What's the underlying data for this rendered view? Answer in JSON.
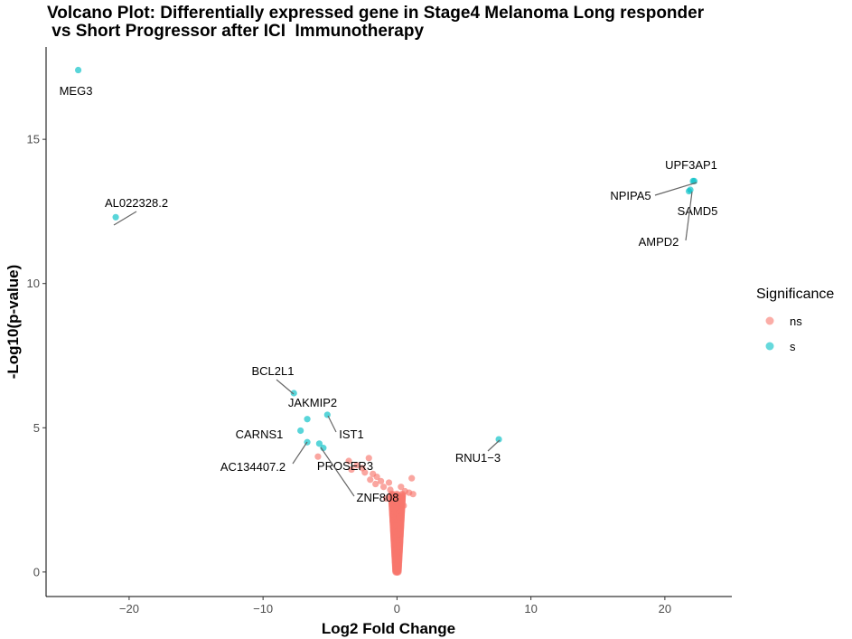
{
  "chart_data": {
    "type": "scatter",
    "title_line1": "Volcano Plot: Differentially expressed gene in Stage4 Melanoma Long responder",
    "title_line2": " vs Short Progressor after ICI  Immunotherapy",
    "xlabel": "Log2 Fold Change",
    "ylabel": "-Log10(p-value)",
    "xlim": [
      -26.2,
      25
    ],
    "ylim": [
      -0.85,
      18.2
    ],
    "x_ticks": [
      {
        "value": -20,
        "label": "−20"
      },
      {
        "value": -10,
        "label": "−10"
      },
      {
        "value": 0,
        "label": "0"
      },
      {
        "value": 10,
        "label": "10"
      },
      {
        "value": 20,
        "label": "20"
      }
    ],
    "y_ticks": [
      {
        "value": 0,
        "label": "0"
      },
      {
        "value": 5,
        "label": "5"
      },
      {
        "value": 10,
        "label": "10"
      },
      {
        "value": 15,
        "label": "15"
      }
    ],
    "legend": {
      "title": "Significance",
      "position": "right",
      "entries": [
        {
          "key": "ns",
          "label": "ns",
          "color": "#F8766D"
        },
        {
          "key": "s",
          "label": "s",
          "color": "#00BFC4"
        }
      ]
    },
    "series": [
      {
        "name": "s",
        "color": "#00BFC4",
        "points": [
          {
            "gene": "MEG3",
            "x": -23.8,
            "y": 17.4
          },
          {
            "gene": "AL022328.2",
            "x": -21.0,
            "y": 12.3
          },
          {
            "gene": "UPF3AP1",
            "x": 22.2,
            "y": 13.55
          },
          {
            "gene": "NPIPA5",
            "x": 22.1,
            "y": 13.55
          },
          {
            "gene": "SAMD5",
            "x": 21.9,
            "y": 13.25
          },
          {
            "gene": "AMPD2",
            "x": 21.8,
            "y": 13.2
          },
          {
            "gene": "BCL2L1",
            "x": -7.7,
            "y": 6.2
          },
          {
            "gene": "JAKMIP2",
            "x": -6.7,
            "y": 5.3
          },
          {
            "gene": "IST1",
            "x": -5.2,
            "y": 5.45
          },
          {
            "gene": "CARNS1",
            "x": -7.2,
            "y": 4.9
          },
          {
            "gene": "AC134407.2",
            "x": -6.7,
            "y": 4.5
          },
          {
            "gene": "PROSER3",
            "x": -5.8,
            "y": 4.45
          },
          {
            "gene": "ZNF808",
            "x": -5.5,
            "y": 4.3
          },
          {
            "gene": "RNU1-3",
            "x": 7.6,
            "y": 4.6
          }
        ]
      },
      {
        "name": "ns",
        "color": "#F8766D",
        "points": [
          {
            "x": -5.9,
            "y": 4.0
          },
          {
            "x": -2.1,
            "y": 3.95
          },
          {
            "x": -3.6,
            "y": 3.85
          },
          {
            "x": -3.0,
            "y": 3.7
          },
          {
            "x": -2.6,
            "y": 3.6
          },
          {
            "x": -3.4,
            "y": 3.55
          },
          {
            "x": -2.4,
            "y": 3.45
          },
          {
            "x": -1.8,
            "y": 3.4
          },
          {
            "x": -1.5,
            "y": 3.3
          },
          {
            "x": -2.0,
            "y": 3.2
          },
          {
            "x": -1.2,
            "y": 3.15
          },
          {
            "x": -0.6,
            "y": 3.1
          },
          {
            "x": 1.1,
            "y": 3.25
          },
          {
            "x": -1.6,
            "y": 3.05
          },
          {
            "x": -1.0,
            "y": 2.95
          },
          {
            "x": -0.5,
            "y": 2.85
          },
          {
            "x": 0.3,
            "y": 2.95
          },
          {
            "x": 0.6,
            "y": 2.8
          },
          {
            "x": 0.9,
            "y": 2.75
          },
          {
            "x": 1.2,
            "y": 2.7
          },
          {
            "x": 0.4,
            "y": 2.6
          },
          {
            "x": -0.3,
            "y": 2.7
          },
          {
            "x": -0.8,
            "y": 2.55
          },
          {
            "x": 0.2,
            "y": 2.5
          },
          {
            "x": -0.4,
            "y": 2.4
          },
          {
            "x": 0.5,
            "y": 2.3
          },
          {
            "x": -0.2,
            "y": 2.2
          },
          {
            "x": 0.3,
            "y": 2.1
          },
          {
            "x": -0.3,
            "y": 2.0
          },
          {
            "x": 0.2,
            "y": 1.9
          },
          {
            "x": -0.2,
            "y": 1.8
          },
          {
            "x": 0.15,
            "y": 1.7
          },
          {
            "x": -0.15,
            "y": 1.6
          },
          {
            "x": 0.1,
            "y": 1.5
          },
          {
            "x": -0.1,
            "y": 1.4
          },
          {
            "x": 0.1,
            "y": 1.3
          },
          {
            "x": -0.1,
            "y": 1.2
          },
          {
            "x": 0.05,
            "y": 1.1
          },
          {
            "x": -0.05,
            "y": 1.0
          },
          {
            "x": 0.05,
            "y": 0.9
          },
          {
            "x": -0.05,
            "y": 0.8
          },
          {
            "x": 0.05,
            "y": 0.7
          },
          {
            "x": -0.05,
            "y": 0.6
          },
          {
            "x": 0.0,
            "y": 0.5
          },
          {
            "x": 0.0,
            "y": 0.4
          },
          {
            "x": 0.0,
            "y": 0.3
          },
          {
            "x": 0.0,
            "y": 0.2
          },
          {
            "x": 0.0,
            "y": 0.1
          },
          {
            "x": 0.0,
            "y": 0.0
          }
        ]
      }
    ],
    "annotations": [
      {
        "gene": "MEG3",
        "text": "MEG3"
      },
      {
        "gene": "AL022328.2",
        "text": "AL022328.2"
      },
      {
        "gene": "UPF3AP1",
        "text": "UPF3AP1"
      },
      {
        "gene": "NPIPA5",
        "text": "NPIPA5"
      },
      {
        "gene": "SAMD5",
        "text": "SAMD5"
      },
      {
        "gene": "AMPD2",
        "text": "AMPD2"
      },
      {
        "gene": "BCL2L1",
        "text": "BCL2L1"
      },
      {
        "gene": "JAKMIP2",
        "text": "JAKMIP2"
      },
      {
        "gene": "IST1",
        "text": "IST1"
      },
      {
        "gene": "CARNS1",
        "text": "CARNS1"
      },
      {
        "gene": "AC134407.2",
        "text": "AC134407.2"
      },
      {
        "gene": "PROSER3",
        "text": "PROSER3"
      },
      {
        "gene": "ZNF808",
        "text": "ZNF808"
      },
      {
        "gene": "RNU1-3",
        "text": "RNU1−3"
      }
    ]
  }
}
